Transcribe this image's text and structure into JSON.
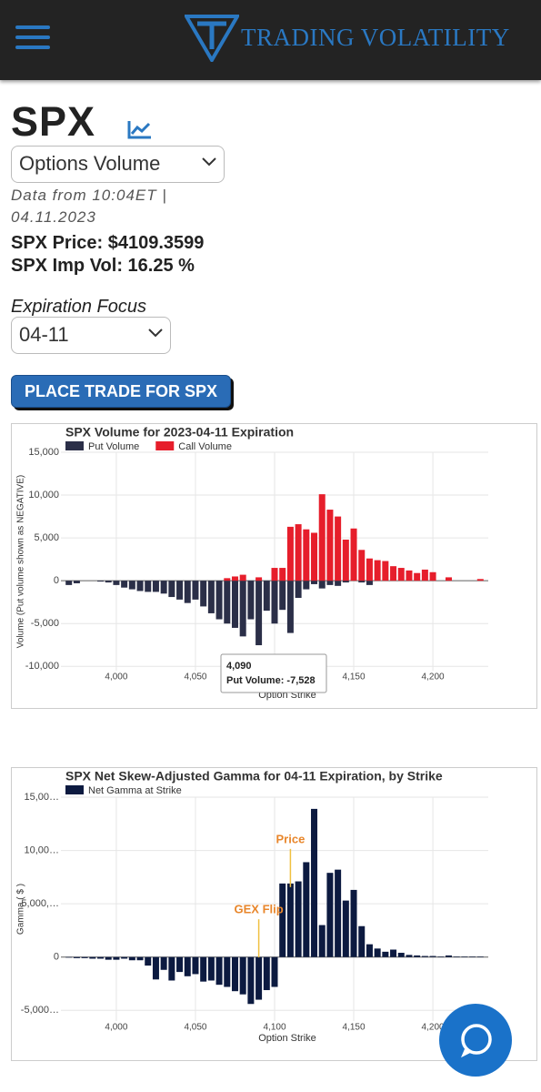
{
  "header": {
    "brand": "TRADING VOLATILITY"
  },
  "ticker": "SPX",
  "view_select": "Options Volume",
  "data_from": "Data from 10:04ET | 04.11.2023",
  "price_line": "SPX Price: $4109.3599",
  "vol_line": "SPX Imp Vol: 16.25 %",
  "expiration_label": "Expiration Focus",
  "expiration_select": "04-11",
  "trade_button": "PLACE TRADE FOR SPX",
  "chart_data": [
    {
      "type": "bar",
      "title": "SPX Volume for 2023-04-11 Expiration",
      "x_label": "Option Strike",
      "y_label": "Volume (Put volume shown as NEGATIVE)",
      "x": [
        3970,
        3975,
        3980,
        3985,
        3990,
        3995,
        4000,
        4005,
        4010,
        4015,
        4020,
        4025,
        4030,
        4035,
        4040,
        4045,
        4050,
        4055,
        4060,
        4065,
        4070,
        4075,
        4080,
        4085,
        4090,
        4095,
        4100,
        4105,
        4110,
        4115,
        4120,
        4125,
        4130,
        4135,
        4140,
        4145,
        4150,
        4155,
        4160,
        4165,
        4170,
        4175,
        4180,
        4185,
        4190,
        4195,
        4200,
        4205,
        4210,
        4215,
        4220,
        4225,
        4230
      ],
      "series": [
        {
          "name": "Put Volume",
          "color": "#2b2f48",
          "values": [
            -500,
            -300,
            0,
            0,
            -100,
            -200,
            -500,
            -800,
            -1000,
            -1200,
            -1300,
            -1300,
            -1500,
            -1900,
            -2200,
            -2600,
            -2200,
            -3000,
            -3800,
            -4500,
            -5000,
            -5500,
            -6500,
            -4500,
            -7528,
            -3500,
            -5000,
            -3400,
            -6100,
            -2000,
            -1000,
            -400,
            -900,
            -500,
            -600,
            -200,
            0,
            -200,
            -500,
            0,
            0,
            0,
            0,
            0,
            0,
            0,
            0,
            0,
            0,
            0,
            0,
            0,
            0
          ]
        },
        {
          "name": "Call Volume",
          "color": "#e61e2b",
          "values": [
            0,
            0,
            0,
            0,
            0,
            0,
            0,
            0,
            0,
            0,
            0,
            0,
            0,
            0,
            0,
            0,
            0,
            0,
            0,
            0,
            300,
            500,
            700,
            0,
            400,
            0,
            1500,
            1500,
            6300,
            6600,
            6000,
            5600,
            10100,
            8300,
            7500,
            4800,
            6100,
            3600,
            2600,
            2400,
            2300,
            1700,
            1500,
            1200,
            900,
            1300,
            1000,
            0,
            400,
            0,
            0,
            0,
            200
          ]
        }
      ],
      "xlim": [
        3965,
        4235
      ],
      "xticks": [
        {
          "value": 4000,
          "label": "4,000"
        },
        {
          "value": 4050,
          "label": "4,050"
        },
        {
          "value": 4100,
          "label": "4,100"
        },
        {
          "value": 4150,
          "label": "4,150"
        },
        {
          "value": 4200,
          "label": "4,200"
        }
      ],
      "ylim": [
        -10500,
        15000
      ],
      "yticks": [
        {
          "value": -10000,
          "label": "-10,000"
        },
        {
          "value": -5000,
          "label": "-5,000"
        },
        0,
        {
          "value": 5000,
          "label": "5,000"
        },
        {
          "value": 10000,
          "label": "10,000"
        },
        {
          "value": 15000,
          "label": "15,000"
        }
      ],
      "grid": true,
      "tooltip": {
        "title": "4,090",
        "label": "Put Volume: -7,528"
      }
    },
    {
      "type": "bar",
      "title": "SPX Net Skew-Adjusted Gamma for 04-11 Expiration, by Strike",
      "x_label": "Option Strike",
      "y_label": "Gamma ( $ )",
      "x": [
        3970,
        3975,
        3980,
        3985,
        3990,
        3995,
        4000,
        4005,
        4010,
        4015,
        4020,
        4025,
        4030,
        4035,
        4040,
        4045,
        4050,
        4055,
        4060,
        4065,
        4070,
        4075,
        4080,
        4085,
        4090,
        4095,
        4100,
        4105,
        4110,
        4115,
        4120,
        4125,
        4130,
        4135,
        4140,
        4145,
        4150,
        4155,
        4160,
        4165,
        4170,
        4175,
        4180,
        4185,
        4190,
        4195,
        4200,
        4205,
        4210,
        4215,
        4220,
        4225,
        4230
      ],
      "series": [
        {
          "name": "Net Gamma at Strike",
          "color": "#0c1a40",
          "values": [
            -50,
            -100,
            -100,
            -150,
            -150,
            -250,
            -250,
            -150,
            -300,
            -300,
            -800,
            -2100,
            -1200,
            -2200,
            -1400,
            -1800,
            -1600,
            -2300,
            -2200,
            -2600,
            -2800,
            -3200,
            -3500,
            -4400,
            -4000,
            -3100,
            -2800,
            6900,
            6900,
            7100,
            8900,
            13900,
            3000,
            7900,
            8200,
            5300,
            6300,
            2900,
            1200,
            800,
            500,
            700,
            400,
            200,
            150,
            100,
            100,
            50,
            150,
            50,
            50,
            50,
            50
          ]
        }
      ],
      "xlim": [
        3965,
        4235
      ],
      "xticks": [
        {
          "value": 4000,
          "label": "4,000"
        },
        {
          "value": 4050,
          "label": "4,050"
        },
        {
          "value": 4100,
          "label": "4,100"
        },
        {
          "value": 4150,
          "label": "4,150"
        },
        {
          "value": 4200,
          "label": "4,200"
        }
      ],
      "ylim": [
        -6000,
        15000
      ],
      "yticks": [
        {
          "value": -5000,
          "label": "-5,000…"
        },
        0,
        {
          "value": 5000,
          "label": "5,000,…"
        },
        {
          "value": 10000,
          "label": "10,00…"
        },
        {
          "value": 15000,
          "label": "15,00…"
        }
      ],
      "grid": true,
      "annotations": [
        {
          "text": "Price",
          "x": 4110,
          "y": 11000
        },
        {
          "text": "GEX Flip",
          "x": 4090,
          "y": 4400
        }
      ]
    }
  ]
}
